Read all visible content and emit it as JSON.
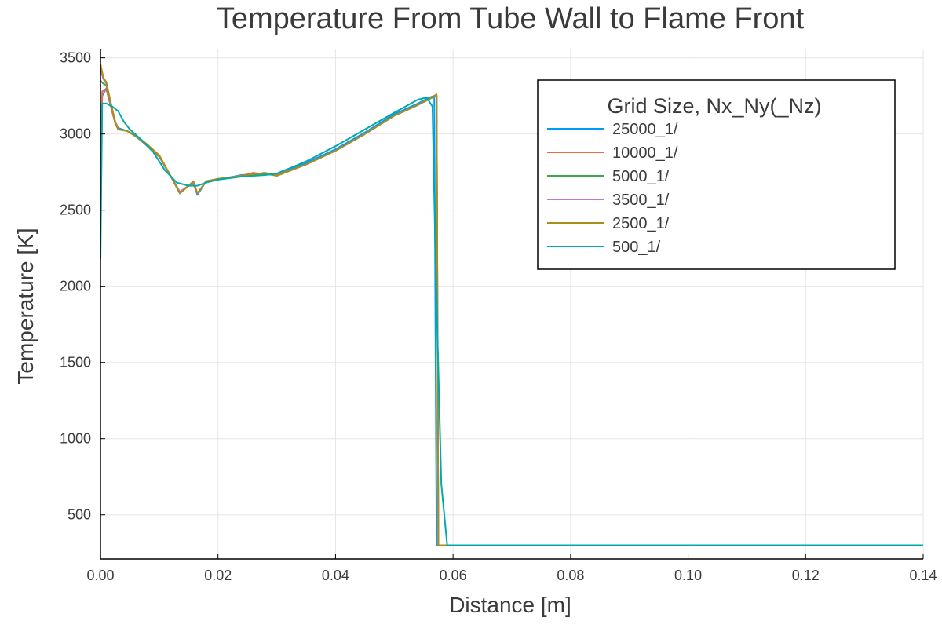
{
  "chart_data": {
    "type": "line",
    "title": "Temperature From Tube Wall to Flame Front",
    "xlabel": "Distance [m]",
    "ylabel": "Temperature [K]",
    "xlim": [
      0.0,
      0.14
    ],
    "ylim": [
      210,
      3560
    ],
    "x_ticks": [
      0.0,
      0.02,
      0.04,
      0.06,
      0.08,
      0.1,
      0.12,
      0.14
    ],
    "x_tick_labels": [
      "0.00",
      "0.02",
      "0.04",
      "0.06",
      "0.08",
      "0.10",
      "0.12",
      "0.14"
    ],
    "y_ticks": [
      500,
      1000,
      1500,
      2000,
      2500,
      3000,
      3500
    ],
    "y_tick_labels": [
      "500",
      "1000",
      "1500",
      "2000",
      "2500",
      "3000",
      "3500"
    ],
    "grid": true,
    "legend": {
      "title": "Grid Size, Nx_Ny(_Nz)",
      "placement": "top-right"
    },
    "series": [
      {
        "name": "25000_1/",
        "color": "#009AFA",
        "points": [
          [
            0.0,
            2800
          ],
          [
            0.0003,
            3250
          ],
          [
            0.001,
            3300
          ],
          [
            0.0015,
            3220
          ],
          [
            0.0025,
            3080
          ],
          [
            0.003,
            3040
          ],
          [
            0.0045,
            3020
          ],
          [
            0.006,
            2990
          ],
          [
            0.008,
            2920
          ],
          [
            0.01,
            2850
          ],
          [
            0.012,
            2720
          ],
          [
            0.0135,
            2610
          ],
          [
            0.015,
            2660
          ],
          [
            0.0158,
            2680
          ],
          [
            0.0165,
            2600
          ],
          [
            0.018,
            2690
          ],
          [
            0.02,
            2700
          ],
          [
            0.024,
            2730
          ],
          [
            0.028,
            2740
          ],
          [
            0.03,
            2730
          ],
          [
            0.035,
            2810
          ],
          [
            0.04,
            2900
          ],
          [
            0.045,
            3010
          ],
          [
            0.05,
            3130
          ],
          [
            0.054,
            3200
          ],
          [
            0.056,
            3240
          ],
          [
            0.0568,
            3250
          ],
          [
            0.0572,
            300
          ],
          [
            0.06,
            300
          ],
          [
            0.14,
            300
          ]
        ]
      },
      {
        "name": "10000_1/",
        "color": "#E36F47",
        "points": [
          [
            0.0,
            2750
          ],
          [
            0.0003,
            3280
          ],
          [
            0.001,
            3290
          ],
          [
            0.0015,
            3220
          ],
          [
            0.0025,
            3070
          ],
          [
            0.003,
            3030
          ],
          [
            0.0045,
            3020
          ],
          [
            0.006,
            2985
          ],
          [
            0.008,
            2920
          ],
          [
            0.01,
            2850
          ],
          [
            0.012,
            2720
          ],
          [
            0.0135,
            2620
          ],
          [
            0.015,
            2660
          ],
          [
            0.0158,
            2670
          ],
          [
            0.0165,
            2610
          ],
          [
            0.018,
            2690
          ],
          [
            0.02,
            2700
          ],
          [
            0.024,
            2725
          ],
          [
            0.026,
            2745
          ],
          [
            0.028,
            2735
          ],
          [
            0.03,
            2730
          ],
          [
            0.035,
            2800
          ],
          [
            0.04,
            2890
          ],
          [
            0.045,
            3000
          ],
          [
            0.05,
            3120
          ],
          [
            0.054,
            3190
          ],
          [
            0.056,
            3230
          ],
          [
            0.0572,
            3250
          ],
          [
            0.0575,
            300
          ],
          [
            0.06,
            300
          ],
          [
            0.14,
            300
          ]
        ]
      },
      {
        "name": "5000_1/",
        "color": "#3EA44E",
        "points": [
          [
            0.0,
            3350
          ],
          [
            0.0005,
            3330
          ],
          [
            0.001,
            3320
          ],
          [
            0.0015,
            3230
          ],
          [
            0.0025,
            3080
          ],
          [
            0.003,
            3030
          ],
          [
            0.0045,
            3020
          ],
          [
            0.006,
            2985
          ],
          [
            0.008,
            2925
          ],
          [
            0.01,
            2855
          ],
          [
            0.012,
            2720
          ],
          [
            0.0135,
            2620
          ],
          [
            0.015,
            2660
          ],
          [
            0.0158,
            2680
          ],
          [
            0.0165,
            2610
          ],
          [
            0.018,
            2690
          ],
          [
            0.02,
            2705
          ],
          [
            0.024,
            2725
          ],
          [
            0.028,
            2740
          ],
          [
            0.03,
            2725
          ],
          [
            0.035,
            2800
          ],
          [
            0.04,
            2890
          ],
          [
            0.045,
            3000
          ],
          [
            0.05,
            3120
          ],
          [
            0.054,
            3190
          ],
          [
            0.056,
            3230
          ],
          [
            0.0572,
            3250
          ],
          [
            0.0575,
            300
          ],
          [
            0.06,
            300
          ],
          [
            0.14,
            300
          ]
        ]
      },
      {
        "name": "3500_1/",
        "color": "#C371D2",
        "points": [
          [
            0.0,
            3420
          ],
          [
            0.0005,
            3360
          ],
          [
            0.001,
            3330
          ],
          [
            0.0015,
            3240
          ],
          [
            0.0025,
            3080
          ],
          [
            0.003,
            3030
          ],
          [
            0.0045,
            3020
          ],
          [
            0.006,
            2990
          ],
          [
            0.008,
            2925
          ],
          [
            0.01,
            2860
          ],
          [
            0.012,
            2720
          ],
          [
            0.0135,
            2620
          ],
          [
            0.015,
            2660
          ],
          [
            0.0158,
            2680
          ],
          [
            0.0165,
            2610
          ],
          [
            0.018,
            2690
          ],
          [
            0.02,
            2705
          ],
          [
            0.024,
            2725
          ],
          [
            0.028,
            2745
          ],
          [
            0.03,
            2725
          ],
          [
            0.035,
            2800
          ],
          [
            0.04,
            2890
          ],
          [
            0.045,
            3000
          ],
          [
            0.05,
            3120
          ],
          [
            0.054,
            3190
          ],
          [
            0.056,
            3230
          ],
          [
            0.0572,
            3255
          ],
          [
            0.0575,
            300
          ],
          [
            0.06,
            300
          ],
          [
            0.14,
            300
          ]
        ]
      },
      {
        "name": "2500_1/",
        "color": "#AC8D18",
        "points": [
          [
            0.0,
            3460
          ],
          [
            0.0005,
            3370
          ],
          [
            0.001,
            3340
          ],
          [
            0.0015,
            3250
          ],
          [
            0.0025,
            3080
          ],
          [
            0.003,
            3030
          ],
          [
            0.0045,
            3020
          ],
          [
            0.006,
            2990
          ],
          [
            0.008,
            2930
          ],
          [
            0.01,
            2860
          ],
          [
            0.012,
            2720
          ],
          [
            0.0135,
            2610
          ],
          [
            0.015,
            2660
          ],
          [
            0.0158,
            2690
          ],
          [
            0.0165,
            2610
          ],
          [
            0.018,
            2690
          ],
          [
            0.02,
            2705
          ],
          [
            0.024,
            2725
          ],
          [
            0.028,
            2745
          ],
          [
            0.03,
            2725
          ],
          [
            0.035,
            2800
          ],
          [
            0.04,
            2890
          ],
          [
            0.045,
            3000
          ],
          [
            0.05,
            3120
          ],
          [
            0.054,
            3190
          ],
          [
            0.056,
            3230
          ],
          [
            0.0572,
            3260
          ],
          [
            0.0575,
            300
          ],
          [
            0.06,
            300
          ],
          [
            0.14,
            300
          ]
        ]
      },
      {
        "name": "500_1/",
        "color": "#00A9AD",
        "points": [
          [
            0.0,
            2180
          ],
          [
            0.0003,
            3200
          ],
          [
            0.001,
            3200
          ],
          [
            0.002,
            3180
          ],
          [
            0.003,
            3150
          ],
          [
            0.004,
            3080
          ],
          [
            0.005,
            3030
          ],
          [
            0.007,
            2960
          ],
          [
            0.009,
            2880
          ],
          [
            0.011,
            2760
          ],
          [
            0.013,
            2680
          ],
          [
            0.015,
            2660
          ],
          [
            0.0165,
            2660
          ],
          [
            0.018,
            2680
          ],
          [
            0.02,
            2700
          ],
          [
            0.024,
            2720
          ],
          [
            0.028,
            2730
          ],
          [
            0.03,
            2740
          ],
          [
            0.035,
            2820
          ],
          [
            0.04,
            2920
          ],
          [
            0.045,
            3030
          ],
          [
            0.05,
            3140
          ],
          [
            0.054,
            3225
          ],
          [
            0.0555,
            3240
          ],
          [
            0.0565,
            3180
          ],
          [
            0.057,
            2200
          ],
          [
            0.058,
            700
          ],
          [
            0.059,
            300
          ],
          [
            0.14,
            300
          ]
        ]
      }
    ]
  }
}
